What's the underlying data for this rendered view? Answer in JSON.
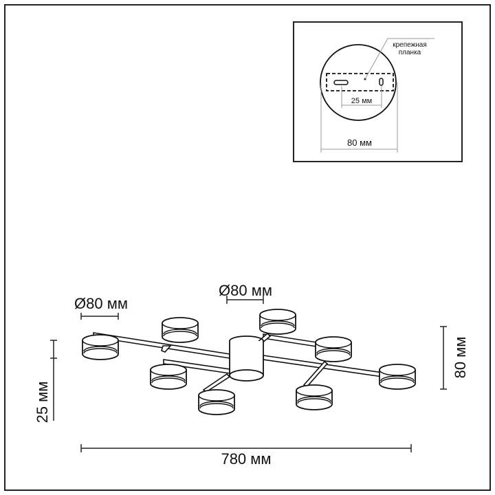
{
  "inset": {
    "label_line1": "крепежная",
    "label_line2": "планка",
    "hole_spacing": "25 мм",
    "base_diameter": "80 мм"
  },
  "dimensions": {
    "shade_diameter_left": "Ø80 мм",
    "shade_diameter_top": "Ø80 мм",
    "height": "80 мм",
    "canopy_height": "25 мм",
    "length": "780 мм"
  },
  "colors": {
    "line": "#111111",
    "background": "#ffffff"
  }
}
